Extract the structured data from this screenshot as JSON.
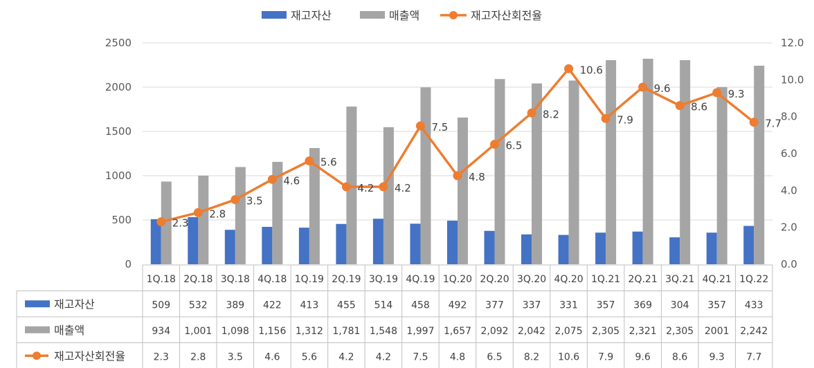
{
  "colors": {
    "inventory": "#4472C4",
    "sales": "#A5A5A5",
    "turnover": "#ED7D31",
    "gridline": "#D9D9D9",
    "table_border": "#BFBFBF"
  },
  "chart_data": {
    "type": "bar",
    "categories": [
      "1Q.18",
      "2Q.18",
      "3Q.18",
      "4Q.18",
      "1Q.19",
      "2Q.19",
      "3Q.19",
      "4Q.19",
      "1Q.20",
      "2Q.20",
      "3Q.20",
      "4Q.20",
      "1Q.21",
      "2Q.21",
      "3Q.21",
      "4Q.21",
      "1Q.22"
    ],
    "series": [
      {
        "name": "재고자산",
        "type": "bar",
        "axis": "left",
        "values": [
          509,
          532,
          389,
          422,
          413,
          455,
          514,
          458,
          492,
          377,
          337,
          331,
          357,
          369,
          304,
          357,
          433
        ],
        "table_values": [
          "509",
          "532",
          "389",
          "422",
          "413",
          "455",
          "514",
          "458",
          "492",
          "377",
          "337",
          "331",
          "357",
          "369",
          "304",
          "357",
          "433"
        ]
      },
      {
        "name": "매출액",
        "type": "bar",
        "axis": "left",
        "values": [
          934,
          1001,
          1098,
          1156,
          1312,
          1781,
          1548,
          1997,
          1657,
          2092,
          2042,
          2075,
          2305,
          2321,
          2305,
          2001,
          2242
        ],
        "table_values": [
          "934",
          "1,001",
          "1,098",
          "1,156",
          "1,312",
          "1,781",
          "1,548",
          "1,997",
          "1,657",
          "2,092",
          "2,042",
          "2,075",
          "2,305",
          "2,321",
          "2,305",
          "2001",
          "2,242"
        ]
      },
      {
        "name": "재고자산회전율",
        "type": "line",
        "axis": "right",
        "values": [
          2.3,
          2.8,
          3.5,
          4.6,
          5.6,
          4.2,
          4.2,
          7.5,
          4.8,
          6.5,
          8.2,
          10.6,
          7.9,
          9.6,
          8.6,
          9.3,
          7.7
        ],
        "table_values": [
          "2.3",
          "2.8",
          "3.5",
          "4.6",
          "5.6",
          "4.2",
          "4.2",
          "7.5",
          "4.8",
          "6.5",
          "8.2",
          "10.6",
          "7.9",
          "9.6",
          "8.6",
          "9.3",
          "7.7"
        ]
      }
    ],
    "y_left": {
      "min": 0,
      "max": 2500,
      "ticks": [
        "0",
        "500",
        "1000",
        "1500",
        "2000",
        "2500"
      ]
    },
    "y_right": {
      "min": 0,
      "max": 12,
      "ticks": [
        "0.0",
        "2.0",
        "4.0",
        "6.0",
        "8.0",
        "10.0",
        "12.0"
      ]
    },
    "grid": true,
    "legend_position": "top",
    "data_table": true
  }
}
